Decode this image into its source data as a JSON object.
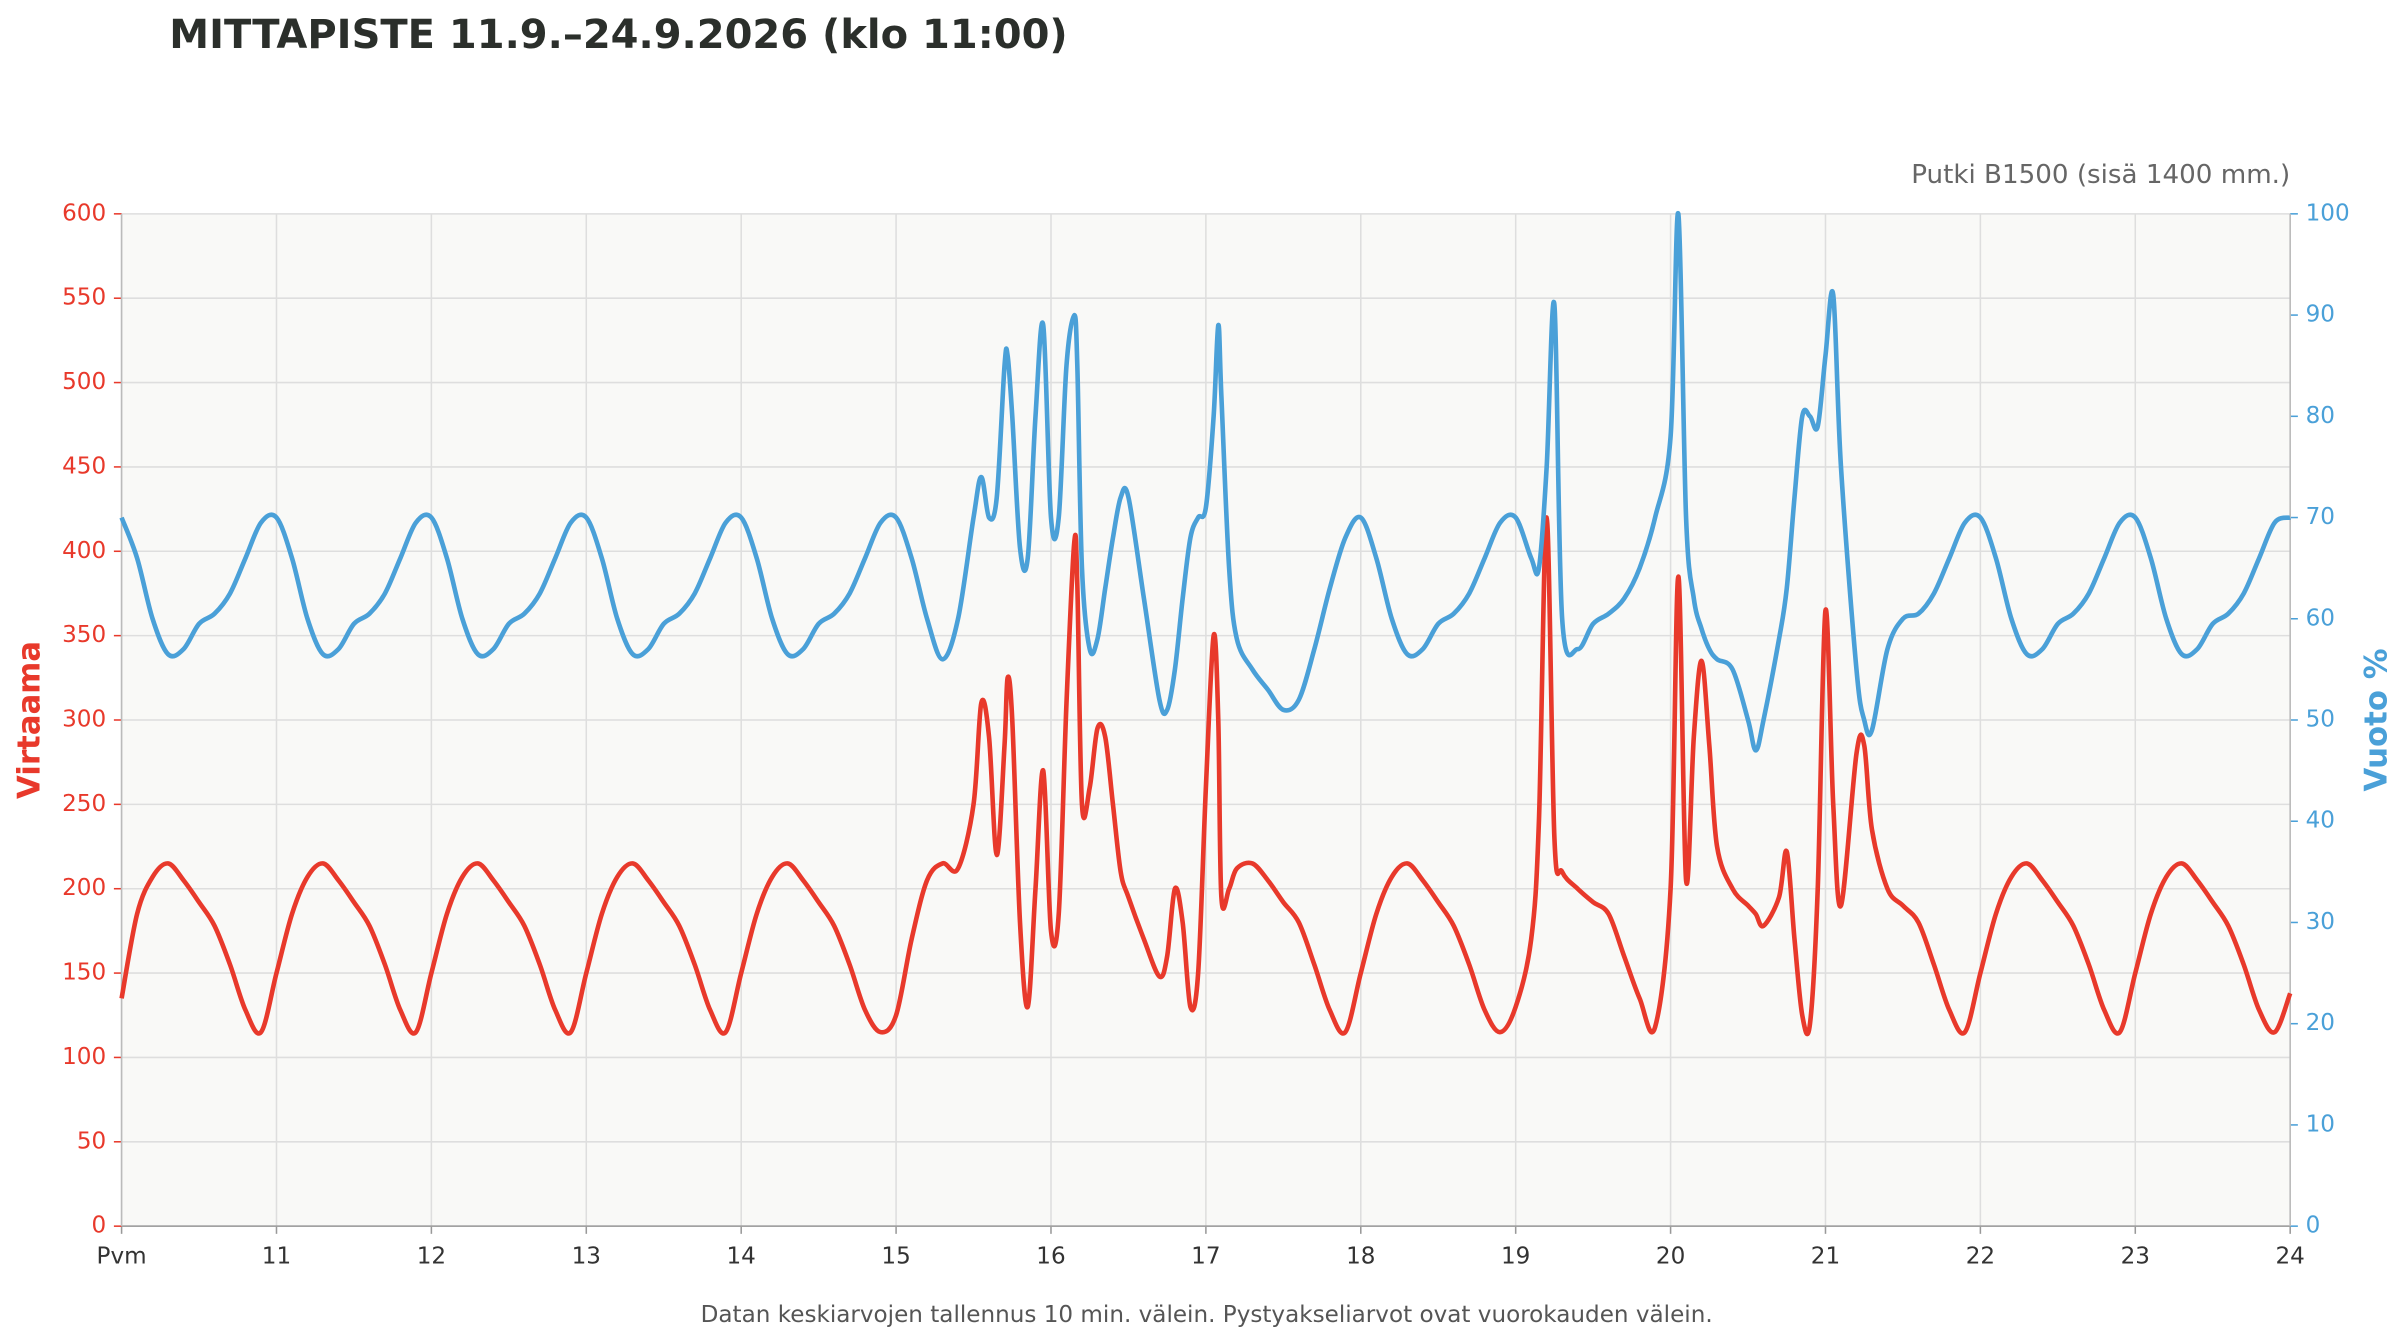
{
  "chart_data": {
    "type": "line",
    "title": "MITTAPISTE   11.9.–24.9.2026   (klo 11:00)",
    "subtitle": "Putki B1500 (sisä 1400 mm.)",
    "note": "Datan keskiarvojen tallennus 10 min. välein. Pystyakseliarvot ovat vuorokauden välein.",
    "y_label": "Virtaama",
    "y2_label": "Vuoto %",
    "grid": true,
    "xlim": [
      10,
      24
    ],
    "xticks": [
      {
        "value": 10,
        "label": "Pvm"
      },
      11,
      12,
      13,
      14,
      15,
      16,
      17,
      18,
      19,
      20,
      21,
      22,
      23,
      24
    ],
    "ylim": [
      0,
      600
    ],
    "yticks": [
      0,
      50,
      100,
      150,
      200,
      250,
      300,
      350,
      400,
      450,
      500,
      550,
      600
    ],
    "y2lim": [
      0,
      100
    ],
    "y2ticks": [
      0,
      10,
      20,
      30,
      40,
      50,
      60,
      70,
      80,
      90,
      100
    ],
    "x": [
      10,
      10.1,
      10.2,
      10.3,
      10.4,
      10.5,
      10.6,
      10.7,
      10.8,
      10.9,
      11,
      11.1,
      11.2,
      11.3,
      11.4,
      11.5,
      11.6,
      11.7,
      11.8,
      11.9,
      12,
      12.1,
      12.2,
      12.3,
      12.4,
      12.5,
      12.6,
      12.7,
      12.8,
      12.9,
      13,
      13.1,
      13.2,
      13.3,
      13.4,
      13.5,
      13.6,
      13.7,
      13.8,
      13.9,
      14,
      14.1,
      14.2,
      14.3,
      14.4,
      14.5,
      14.6,
      14.7,
      14.8,
      14.9,
      15,
      15.1,
      15.2,
      15.3,
      15.4,
      15.5,
      15.55,
      15.6,
      15.65,
      15.7,
      15.72,
      15.75,
      15.8,
      15.85,
      15.9,
      15.95,
      16,
      16.05,
      16.1,
      16.15,
      16.17,
      16.2,
      16.25,
      16.3,
      16.35,
      16.4,
      16.45,
      16.5,
      16.6,
      16.7,
      16.75,
      16.8,
      16.85,
      16.9,
      16.95,
      17,
      17.05,
      17.08,
      17.1,
      17.15,
      17.2,
      17.3,
      17.4,
      17.5,
      17.6,
      17.7,
      17.8,
      17.9,
      18,
      18.1,
      18.2,
      18.3,
      18.4,
      18.5,
      18.6,
      18.7,
      18.8,
      18.9,
      19,
      19.1,
      19.15,
      19.2,
      19.25,
      19.3,
      19.4,
      19.5,
      19.6,
      19.7,
      19.8,
      19.9,
      20,
      20.05,
      20.1,
      20.15,
      20.2,
      20.25,
      20.3,
      20.4,
      20.5,
      20.55,
      20.6,
      20.7,
      20.75,
      20.8,
      20.85,
      20.9,
      20.95,
      21,
      21.05,
      21.1,
      21.2,
      21.25,
      21.3,
      21.4,
      21.5,
      21.6,
      21.7,
      21.8,
      21.9,
      22,
      22.1,
      22.2,
      22.3,
      22.4,
      22.5,
      22.6,
      22.7,
      22.8,
      22.9,
      23,
      23.1,
      23.2,
      23.3,
      23.4,
      23.5,
      23.6,
      23.7,
      23.8,
      23.9,
      24
    ],
    "series": [
      {
        "color": "#e8392b",
        "values": [
          135,
          185,
          207,
          215,
          205,
          192,
          178,
          155,
          128,
          115,
          150,
          185,
          207,
          215,
          205,
          192,
          178,
          155,
          128,
          115,
          150,
          185,
          207,
          215,
          205,
          192,
          178,
          155,
          128,
          115,
          150,
          185,
          207,
          215,
          205,
          192,
          178,
          155,
          128,
          115,
          150,
          185,
          207,
          215,
          205,
          192,
          178,
          155,
          128,
          115,
          125,
          170,
          205,
          215,
          212,
          250,
          310,
          290,
          220,
          285,
          325,
          300,
          180,
          130,
          200,
          270,
          175,
          185,
          310,
          405,
          380,
          250,
          260,
          295,
          290,
          250,
          210,
          195,
          170,
          148,
          160,
          200,
          180,
          130,
          150,
          260,
          350,
          300,
          195,
          200,
          212,
          215,
          205,
          192,
          180,
          155,
          128,
          115,
          150,
          185,
          207,
          215,
          205,
          192,
          178,
          155,
          128,
          115,
          130,
          170,
          240,
          420,
          230,
          210,
          200,
          192,
          185,
          160,
          135,
          118,
          200,
          385,
          205,
          290,
          335,
          285,
          225,
          200,
          190,
          185,
          178,
          195,
          222,
          170,
          125,
          120,
          200,
          365,
          250,
          190,
          280,
          285,
          235,
          200,
          190,
          180,
          155,
          128,
          115,
          150,
          185,
          207,
          215,
          205,
          192,
          178,
          155,
          128,
          115,
          150,
          185,
          207,
          215,
          205,
          192,
          178,
          155,
          128,
          115,
          138
        ]
      },
      {
        "color": "#4aa0d8",
        "axis": "y2",
        "values": [
          70,
          66,
          60,
          56.5,
          57,
          59.5,
          60.5,
          62.5,
          66,
          69.5,
          70,
          66,
          60,
          56.5,
          57,
          59.5,
          60.5,
          62.5,
          66,
          69.5,
          70,
          66,
          60,
          56.5,
          57,
          59.5,
          60.5,
          62.5,
          66,
          69.5,
          70,
          66,
          60,
          56.5,
          57,
          59.5,
          60.5,
          62.5,
          66,
          69.5,
          70,
          66,
          60,
          56.5,
          57,
          59.5,
          60.5,
          62.5,
          66,
          69.5,
          70,
          66,
          60,
          56,
          60,
          70,
          74,
          70,
          72,
          85,
          86,
          80,
          67,
          66,
          80,
          89,
          70,
          70,
          85,
          90,
          85,
          65,
          57,
          58,
          63,
          68,
          72,
          72,
          62,
          52,
          51,
          55,
          62,
          68,
          70,
          71,
          80,
          89,
          82,
          65,
          58,
          55,
          53,
          51,
          52,
          57,
          63,
          68,
          70,
          66,
          60,
          56.5,
          57,
          59.5,
          60.5,
          62.5,
          66,
          69.5,
          70,
          66,
          65,
          75,
          91,
          60,
          57,
          59.5,
          60.5,
          62,
          65,
          70,
          78,
          100,
          70,
          62,
          59,
          57,
          56,
          55,
          50,
          47,
          50,
          58,
          63,
          72,
          80,
          80,
          79,
          86,
          92,
          75,
          55,
          50,
          49,
          57,
          60,
          60.5,
          62.5,
          66,
          69.5,
          70,
          66,
          60,
          56.5,
          57,
          59.5,
          60.5,
          62.5,
          66,
          69.5,
          70,
          66,
          60,
          56.5,
          57,
          59.5,
          60.5,
          62.5,
          66,
          69.5,
          70
        ]
      }
    ]
  }
}
